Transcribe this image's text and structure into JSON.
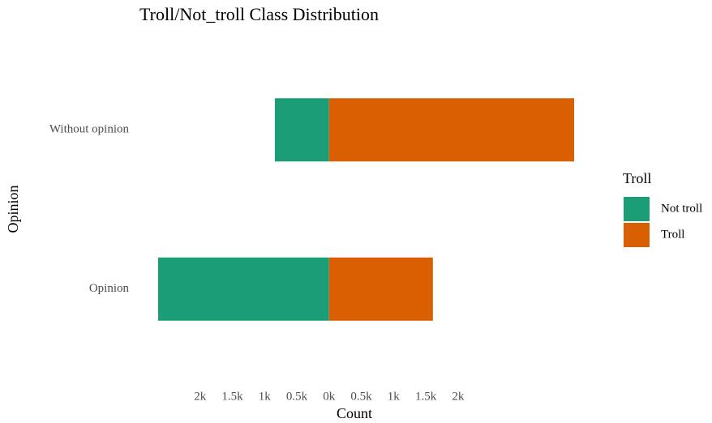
{
  "chart_data": {
    "type": "diverging_bar",
    "orientation": "horizontal",
    "title": "Troll/Not_troll Class Distribution",
    "x_label": "Count",
    "y_label": "Opinion",
    "categories": [
      "Without opinion",
      "Opinion"
    ],
    "series": [
      {
        "name": "Not troll",
        "color": "#1b9e77",
        "values": [
          -840,
          -2650
        ]
      },
      {
        "name": "Troll",
        "color": "#d95f02",
        "values": [
          3800,
          1610
        ]
      }
    ],
    "xlim": [
      -2650,
      3800
    ],
    "xticks": [
      {
        "value": -2000,
        "label": "2k"
      },
      {
        "value": -1500,
        "label": "1.5k"
      },
      {
        "value": -1000,
        "label": "1k"
      },
      {
        "value": -500,
        "label": "0.5k"
      },
      {
        "value": 0,
        "label": "0k"
      },
      {
        "value": 500,
        "label": "0.5k"
      },
      {
        "value": 1000,
        "label": "1k"
      },
      {
        "value": 1500,
        "label": "1.5k"
      },
      {
        "value": 2000,
        "label": "2k"
      }
    ],
    "grid": false,
    "legend_title": "Troll",
    "legend_position": "right"
  }
}
